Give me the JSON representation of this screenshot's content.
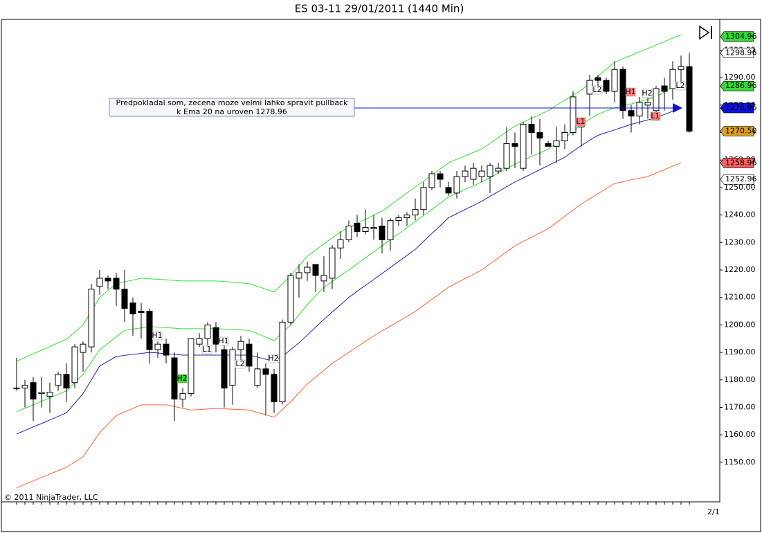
{
  "chart_data": {
    "type": "candlestick",
    "title": "ES 03-11  29/01/2011 (1440 Min)",
    "copyright": "© 2011 NinjaTrader, LLC",
    "x_axis_label": "2/1",
    "note": [
      "Predpokladal som, zecena moze velmi lahko spravit pullback",
      "k Ema 20 na uroven 1278.96"
    ],
    "ylim": [
      1135.6,
      1311.2
    ],
    "yticks": [
      {
        "value": 1150,
        "label": "1150.00"
      },
      {
        "value": 1160,
        "label": "1160.00"
      },
      {
        "value": 1170,
        "label": "1170.00"
      },
      {
        "value": 1180,
        "label": "1180.00"
      },
      {
        "value": 1190,
        "label": "1190.00"
      },
      {
        "value": 1200,
        "label": "1200.00"
      },
      {
        "value": 1210,
        "label": "1210.00"
      },
      {
        "value": 1220,
        "label": "1220.00"
      },
      {
        "value": 1230,
        "label": "1230.00"
      },
      {
        "value": 1240,
        "label": "1240.00"
      },
      {
        "value": 1250,
        "label": "1250.00"
      },
      {
        "value": 1260,
        "label": "1260.00"
      },
      {
        "value": 1270,
        "label": "1270.00"
      },
      {
        "value": 1280,
        "label": "1280.00"
      },
      {
        "value": 1290,
        "label": "1290.00"
      },
      {
        "value": 1300,
        "label": "1300.00"
      }
    ],
    "up_color": "#ffffff",
    "down_color": "#000000",
    "categories": [
      null,
      null,
      null,
      null,
      null,
      null,
      null,
      null,
      null,
      null,
      null,
      null,
      null,
      null,
      null,
      null,
      null,
      null,
      null,
      null,
      null,
      null,
      null,
      null,
      null,
      null,
      null,
      null,
      null,
      null,
      null,
      null,
      null,
      null,
      null,
      null,
      null,
      null,
      null,
      null,
      null,
      null,
      null,
      null,
      null,
      null,
      null,
      null,
      null,
      null,
      null,
      null,
      null,
      null,
      null,
      null,
      null,
      null,
      null,
      null,
      null,
      null,
      null,
      null,
      null,
      null,
      null,
      null,
      null,
      null,
      null,
      null,
      null,
      null,
      null,
      null,
      null,
      null,
      null,
      null,
      null,
      null
    ],
    "open": [
      1177,
      1177,
      1179,
      1175,
      1174,
      1178,
      1182,
      1179,
      1190,
      1192,
      1214,
      1217,
      1217,
      1213,
      1208,
      1205,
      1205,
      1191,
      1193,
      1188,
      1173,
      1175,
      1193,
      1195,
      1199,
      1191,
      1178,
      1191,
      1193,
      1178,
      1184,
      1182,
      1172,
      1201,
      1217,
      1219,
      1222,
      1216,
      1217,
      1228,
      1231,
      1237,
      1234,
      1235,
      1236,
      1231,
      1238,
      1239,
      1240,
      1242,
      1250,
      1255,
      1250,
      1248,
      1254,
      1253,
      1254,
      1254,
      1256,
      1257,
      1266,
      1257,
      1273,
      1270,
      1266,
      1265,
      1267,
      1270,
      1272,
      1284,
      1290,
      1289,
      1285,
      1293,
      1278,
      1276,
      1280,
      1278,
      1287,
      1286,
      1293,
      1294
    ],
    "high": [
      1188,
      1180,
      1181,
      1181,
      1179,
      1183,
      1186,
      1193,
      1194,
      1215,
      1220,
      1218,
      1219,
      1220,
      1210,
      1208,
      1206,
      1194,
      1195,
      1190,
      1177,
      1195,
      1197,
      1201,
      1201,
      1193,
      1192,
      1196,
      1195,
      1190,
      1186,
      1184,
      1202,
      1219,
      1222,
      1223,
      1222,
      1225,
      1229,
      1234,
      1238,
      1240,
      1242,
      1240,
      1239,
      1239,
      1240,
      1241,
      1246,
      1252,
      1256,
      1256,
      1252,
      1256,
      1258,
      1259,
      1258,
      1259,
      1259,
      1272,
      1270,
      1274,
      1276,
      1275,
      1267,
      1272,
      1273,
      1285,
      1275,
      1291,
      1291,
      1290,
      1296,
      1294,
      1280,
      1283,
      1283,
      1287,
      1290,
      1296,
      1298,
      1299
    ],
    "low": [
      1176,
      1170,
      1165,
      1170,
      1168,
      1176,
      1172,
      1177,
      1183,
      1190,
      1211,
      1213,
      1207,
      1201,
      1196,
      1195,
      1186,
      1188,
      1186,
      1165,
      1170,
      1174,
      1192,
      1190,
      1190,
      1170,
      1171,
      1187,
      1183,
      1177,
      1167,
      1168,
      1171,
      1200,
      1210,
      1216,
      1212,
      1212,
      1213,
      1224,
      1230,
      1232,
      1233,
      1231,
      1226,
      1227,
      1236,
      1236,
      1238,
      1240,
      1249,
      1250,
      1247,
      1246,
      1252,
      1251,
      1252,
      1248,
      1255,
      1256,
      1257,
      1256,
      1262,
      1258,
      1265,
      1259,
      1264,
      1269,
      1265,
      1276,
      1287,
      1284,
      1281,
      1275,
      1270,
      1273,
      1275,
      1275,
      1278,
      1282,
      1288,
      1270
    ],
    "close": [
      1177,
      1178,
      1173,
      1175.5,
      1175.5,
      1182,
      1177,
      1192,
      1193,
      1213,
      1217,
      1216,
      1213,
      1206,
      1204,
      1204.5,
      1191,
      1193,
      1189,
      1173,
      1175,
      1195,
      1195,
      1200,
      1193,
      1177,
      1191,
      1194,
      1185,
      1184,
      1182,
      1172,
      1201,
      1218,
      1219,
      1221,
      1218,
      1218,
      1228,
      1231,
      1236,
      1234,
      1235.5,
      1235.5,
      1231,
      1238,
      1239,
      1240,
      1242,
      1250,
      1255,
      1253,
      1248,
      1254,
      1256,
      1257,
      1256,
      1258,
      1257,
      1266,
      1265,
      1273,
      1270,
      1268,
      1265,
      1267,
      1270,
      1283,
      1274,
      1289,
      1289,
      1285,
      1293,
      1278,
      1276,
      1281,
      1281,
      1286,
      1285,
      1293,
      1294,
      1270.5
    ],
    "lines": [
      {
        "color": "#ff6040",
        "values": [
          1140.7,
          1142,
          1143.2,
          1144.5,
          1145.7,
          1147,
          1148.2,
          1150.1,
          1152,
          1156.4,
          1160.8,
          1163.9,
          1167,
          1168.3,
          1169.6,
          1170.9,
          1170.9,
          1170.9,
          1170.9,
          1170.3,
          1169.6,
          1169,
          1169.2,
          1169.4,
          1169.6,
          1169.5,
          1169.3,
          1169.2,
          1169,
          1168.1,
          1167.3,
          1166.4,
          1169.2,
          1172,
          1175.3,
          1178.5,
          1181,
          1183.5,
          1186,
          1188,
          1190,
          1192,
          1194,
          1196,
          1197.8,
          1199.6,
          1201.3,
          1203.1,
          1204.9,
          1207.1,
          1209.3,
          1211.5,
          1213.7,
          1215.3,
          1216.9,
          1218.4,
          1220,
          1222.2,
          1224.4,
          1226.6,
          1228.8,
          1230.4,
          1231.9,
          1233.5,
          1235,
          1237.3,
          1239.5,
          1241.8,
          1244,
          1245.9,
          1247.8,
          1249.6,
          1251.5,
          1252.1,
          1252.8,
          1253.4,
          1254,
          1255.3,
          1256.5,
          1257.8,
          1259,
          null
        ]
      },
      {
        "color": "#2020b0",
        "values": [
          1160.3,
          1161.6,
          1162.9,
          1164.1,
          1165.4,
          1166.7,
          1168,
          1171.5,
          1175,
          1180,
          1185,
          1186.8,
          1188.5,
          1188.9,
          1189.3,
          1189.6,
          1190,
          1189.8,
          1189.5,
          1189.3,
          1189,
          1189,
          1189,
          1189,
          1189,
          1189,
          1189,
          1189,
          1189,
          1188.3,
          1187.5,
          1186.8,
          1188.5,
          1191,
          1193.5,
          1196.3,
          1199.2,
          1202,
          1204.7,
          1207.3,
          1210,
          1212.2,
          1214.4,
          1216.5,
          1218.7,
          1220.9,
          1223.1,
          1225.3,
          1227.5,
          1230.4,
          1233.3,
          1236.1,
          1239,
          1240.5,
          1242,
          1243.5,
          1245,
          1246.8,
          1248.5,
          1250.3,
          1252,
          1253.5,
          1255,
          1256.5,
          1258,
          1259.5,
          1261,
          1263.2,
          1265.3,
          1267.2,
          1269,
          1270,
          1271,
          1272,
          1273,
          1273.8,
          1274.6,
          1275.4,
          1276.6,
          1277.8,
          1279,
          null
        ]
      },
      {
        "color": "#30e030",
        "values": [
          1168.4,
          1169.7,
          1170.9,
          1172.2,
          1173.5,
          1174.7,
          1176,
          1179,
          1182,
          1186.5,
          1191,
          1193.3,
          1195.7,
          1198,
          1198.5,
          1198.9,
          1199.4,
          1199.2,
          1199,
          1198.8,
          1198.6,
          1198.6,
          1198.6,
          1198.6,
          1198.6,
          1198.5,
          1198.3,
          1198.2,
          1198,
          1196.8,
          1195.5,
          1194.3,
          1197.2,
          1200,
          1203.7,
          1207.4,
          1210.6,
          1213.7,
          1215.8,
          1217.9,
          1220,
          1222.2,
          1224.4,
          1226.6,
          1228.8,
          1231,
          1233.2,
          1235.4,
          1237.6,
          1239.8,
          1242,
          1244.3,
          1246.5,
          1247.9,
          1249.3,
          1250.6,
          1252,
          1253.6,
          1255.3,
          1256.9,
          1258.5,
          1259.9,
          1261.3,
          1262.6,
          1264,
          1266,
          1268,
          1270.5,
          1273,
          1274.9,
          1276.7,
          1277.9,
          1279,
          1279.7,
          1280.4,
          1281.3,
          1282.1,
          1283,
          1284.8,
          1286.7,
          1288.5,
          null
        ]
      },
      {
        "color": "#30e030",
        "values": [
          1186.8,
          1188.1,
          1189.5,
          1190.8,
          1192.1,
          1193.5,
          1194.8,
          1197.4,
          1200,
          1205,
          1210,
          1212.5,
          1215,
          1215.7,
          1216.3,
          1217,
          1216.8,
          1216.6,
          1216.4,
          1216.2,
          1216,
          1216,
          1216,
          1216,
          1216,
          1215.8,
          1215.5,
          1215.3,
          1215,
          1214,
          1213,
          1212,
          1215,
          1218,
          1221.5,
          1225,
          1227.2,
          1229.5,
          1231.7,
          1233.9,
          1235.4,
          1236.9,
          1238.4,
          1239.9,
          1241.4,
          1243.6,
          1245.8,
          1248,
          1250.2,
          1252.4,
          1254.6,
          1256.8,
          1259,
          1260.3,
          1261.5,
          1262.8,
          1264,
          1266.1,
          1268.2,
          1270.3,
          1272.4,
          1273.8,
          1275.2,
          1276.6,
          1278,
          1279.9,
          1281.8,
          1283.6,
          1285.5,
          1288,
          1290.6,
          1293.1,
          1295.6,
          1296.9,
          1298.1,
          1299.4,
          1300.6,
          1301.9,
          1303.1,
          1304.4,
          1305.6,
          null
        ]
      }
    ],
    "price_markers": [
      {
        "value": 1304.96,
        "color": "#33dd33"
      },
      {
        "value": 1298.96,
        "color": "#ffffff"
      },
      {
        "value": 1286.96,
        "color": "#33dd33"
      },
      {
        "value": 1278.96,
        "color": "#1010e0"
      },
      {
        "value": 1270.5,
        "label": "1270.50",
        "color": "#e0a020"
      },
      {
        "value": 1258.96,
        "color": "#ff6060"
      },
      {
        "value": 1252.96,
        "color": "#ffffff"
      }
    ],
    "bar_labels": [
      {
        "text": "H1",
        "color": "#ffffff"
      },
      {
        "text": "L1",
        "color": "#ffffff"
      },
      {
        "text": "H1",
        "color": "#ffffff"
      },
      {
        "text": "L2",
        "color": "#ffffff"
      },
      {
        "text": "H2",
        "color": "#33dd33"
      },
      {
        "text": "H2",
        "color": "#ffffff"
      },
      {
        "text": "L1",
        "color": "#ff8080"
      },
      {
        "text": "L2",
        "color": "#ffffff"
      },
      {
        "text": "H1",
        "color": "#ff8080"
      },
      {
        "text": "H2",
        "color": "#ffffff"
      },
      {
        "text": "L1",
        "color": "#ff8080"
      },
      {
        "text": "L2",
        "color": "#ffffff"
      }
    ]
  }
}
